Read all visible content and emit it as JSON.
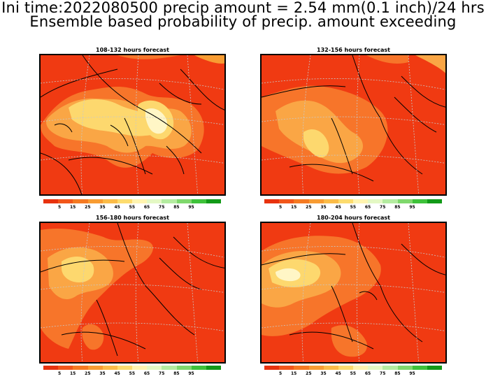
{
  "header": {
    "line1": "Ini time:2022080500 precip amount = 2.54 mm(0.1 inch)/24 hrs",
    "line2": "Ensemble based probability of precip. amount exceeding"
  },
  "panels": [
    {
      "title": "108-132 hours forecast"
    },
    {
      "title": "132-156 hours forecast"
    },
    {
      "title": "156-180 hours forecast"
    },
    {
      "title": "180-204 hours forecast"
    }
  ],
  "colorbar": {
    "colors": [
      "#e8320e",
      "#f2561a",
      "#f57a22",
      "#f89c32",
      "#fbbc48",
      "#fddc6e",
      "#fff4b0",
      "#e4f8c4",
      "#b4eca0",
      "#7fd86c",
      "#3ec23a",
      "#129a18"
    ],
    "labels": [
      "5",
      "15",
      "25",
      "35",
      "45",
      "55",
      "65",
      "75",
      "85",
      "95",
      "",
      ""
    ]
  },
  "colors": {
    "base_red": "#f03a12",
    "orange": "#f7752a",
    "light_orange": "#faa645",
    "yellow": "#fdd86e",
    "pale": "#fff6c6"
  }
}
